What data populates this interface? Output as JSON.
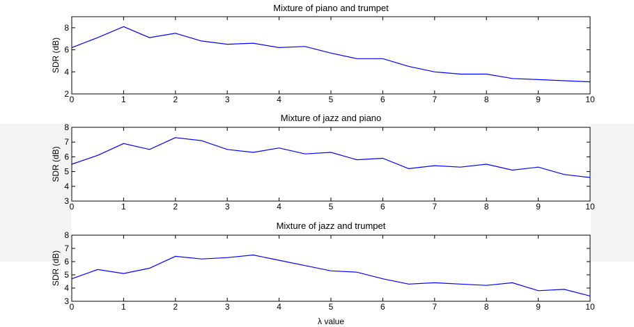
{
  "chart_data": [
    {
      "type": "line",
      "title": "Mixture of piano and trumpet",
      "ylabel": "SDR (dB)",
      "xlabel": "",
      "xlim": [
        0,
        10
      ],
      "ylim": [
        2,
        9
      ],
      "xticks": [
        0,
        1,
        2,
        3,
        4,
        5,
        6,
        7,
        8,
        9,
        10
      ],
      "yticks": [
        2,
        4,
        6,
        8
      ],
      "grid": false,
      "series": [
        {
          "color": "#0000ff",
          "x": [
            0,
            0.5,
            1,
            1.5,
            2,
            2.5,
            3,
            3.5,
            4,
            4.5,
            5,
            5.5,
            6,
            6.5,
            7,
            7.5,
            8,
            8.5,
            9,
            9.5,
            10
          ],
          "values": [
            6.2,
            7.1,
            8.1,
            7.1,
            7.5,
            6.8,
            6.5,
            6.6,
            6.2,
            6.3,
            5.7,
            5.2,
            5.2,
            4.5,
            4.0,
            3.8,
            3.8,
            3.4,
            3.3,
            3.2,
            3.1
          ]
        }
      ]
    },
    {
      "type": "line",
      "title": "Mixture of jazz and piano",
      "ylabel": "SDR (dB)",
      "xlabel": "",
      "xlim": [
        0,
        10
      ],
      "ylim": [
        3,
        8
      ],
      "xticks": [
        0,
        1,
        2,
        3,
        4,
        5,
        6,
        7,
        8,
        9,
        10
      ],
      "yticks": [
        3,
        4,
        5,
        6,
        7,
        8
      ],
      "grid": false,
      "series": [
        {
          "color": "#0000ff",
          "x": [
            0,
            0.5,
            1,
            1.5,
            2,
            2.5,
            3,
            3.5,
            4,
            4.5,
            5,
            5.5,
            6,
            6.5,
            7,
            7.5,
            8,
            8.5,
            9,
            9.5,
            10
          ],
          "values": [
            5.5,
            6.1,
            6.9,
            6.5,
            7.3,
            7.1,
            6.5,
            6.3,
            6.6,
            6.2,
            6.3,
            5.8,
            5.9,
            5.2,
            5.4,
            5.3,
            5.5,
            5.1,
            5.3,
            4.8,
            4.6
          ]
        }
      ]
    },
    {
      "type": "line",
      "title": "Mixture of jazz and trumpet",
      "ylabel": "SDR (dB)",
      "xlabel": "λ value",
      "xlim": [
        0,
        10
      ],
      "ylim": [
        3,
        8
      ],
      "xticks": [
        0,
        1,
        2,
        3,
        4,
        5,
        6,
        7,
        8,
        9,
        10
      ],
      "yticks": [
        3,
        4,
        5,
        6,
        7,
        8
      ],
      "grid": false,
      "series": [
        {
          "color": "#0000ff",
          "x": [
            0,
            0.5,
            1,
            1.5,
            2,
            2.5,
            3,
            3.5,
            4,
            4.5,
            5,
            5.5,
            6,
            6.5,
            7,
            7.5,
            8,
            8.5,
            9,
            9.5,
            10
          ],
          "values": [
            4.7,
            5.4,
            5.1,
            5.5,
            6.4,
            6.2,
            6.3,
            6.5,
            6.1,
            5.7,
            5.3,
            5.2,
            4.7,
            4.3,
            4.4,
            4.3,
            4.2,
            4.4,
            3.8,
            3.9,
            3.4
          ]
        }
      ]
    }
  ]
}
